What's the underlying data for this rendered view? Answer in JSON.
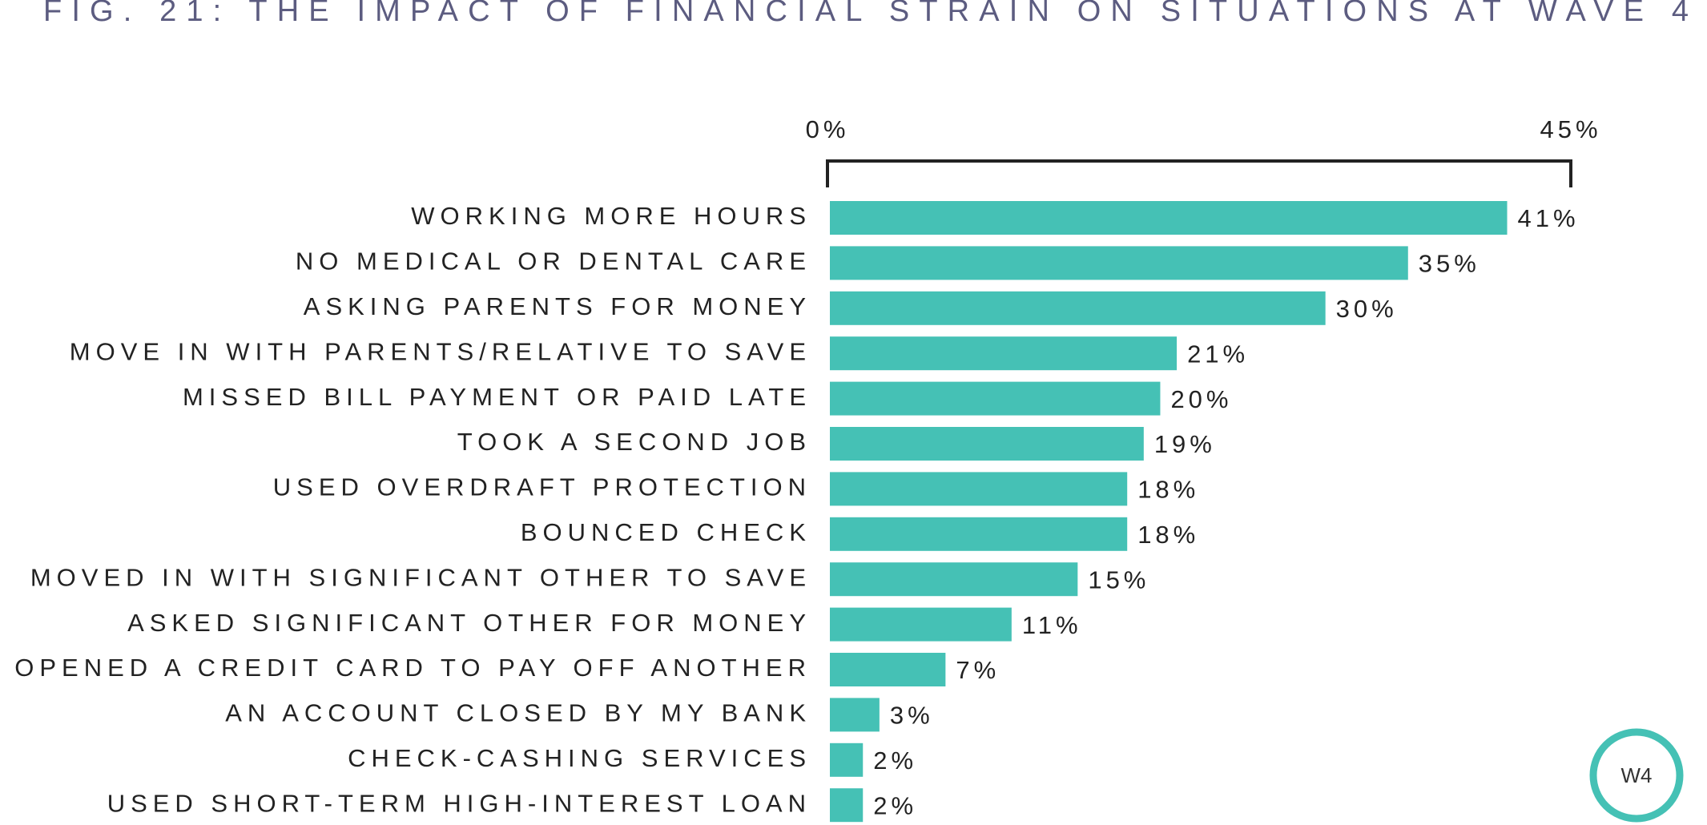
{
  "chart_data": {
    "type": "bar",
    "orientation": "horizontal",
    "title": "FIG. 21: THE IMPACT OF FINANCIAL STRAIN ON SITUATIONS AT WAVE 4",
    "categories": [
      "WORKING MORE HOURS",
      "NO MEDICAL OR DENTAL CARE",
      "ASKING PARENTS FOR MONEY",
      "MOVE IN WITH PARENTS/RELATIVE TO SAVE",
      "MISSED BILL PAYMENT OR PAID LATE",
      "TOOK A SECOND JOB",
      "USED  OVERDRAFT PROTECTION",
      "BOUNCED CHECK",
      "MOVED IN WITH SIGNIFICANT OTHER TO SAVE",
      "ASKED SIGNIFICANT OTHER FOR MONEY",
      "OPENED A CREDIT CARD TO PAY OFF ANOTHER",
      "AN ACCOUNT CLOSED BY MY BANK",
      "CHECK-CASHING SERVICES",
      "USED SHORT-TERM HIGH-INTEREST LOAN"
    ],
    "values": [
      41,
      35,
      30,
      21,
      20,
      19,
      18,
      18,
      15,
      11,
      7,
      3,
      2,
      2
    ],
    "value_labels": [
      "41%",
      "35%",
      "30%",
      "21%",
      "20%",
      "19%",
      "18%",
      "18%",
      "15%",
      "11%",
      "7%",
      "3%",
      "2%",
      "2%"
    ],
    "color": "#45c1b5",
    "xlim": [
      0,
      45
    ],
    "xticks": [
      {
        "value": 0,
        "label": "0%"
      },
      {
        "value": 45,
        "label": "45%"
      }
    ],
    "badge": "W4"
  }
}
